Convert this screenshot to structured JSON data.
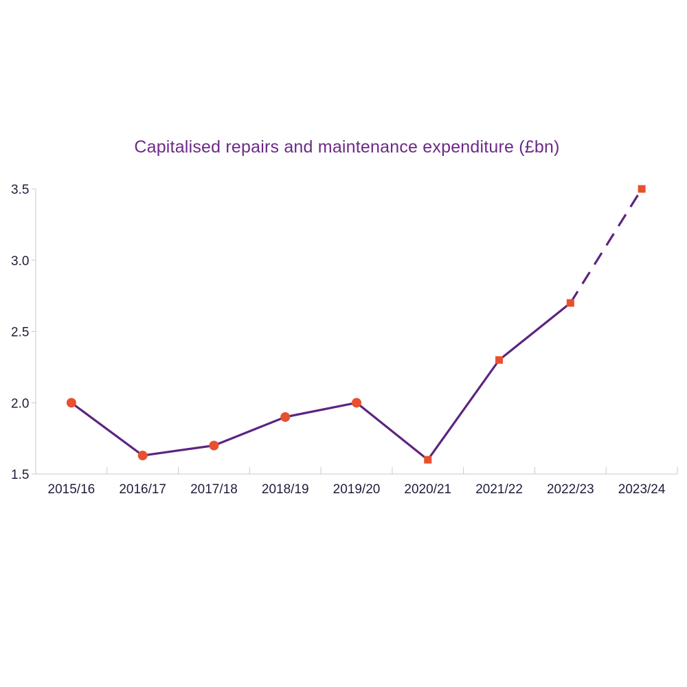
{
  "chart_data": {
    "type": "line",
    "title": "Capitalised repairs and maintenance expenditure (£bn)",
    "xlabel": "",
    "ylabel": "",
    "categories": [
      "2015/16",
      "2016/17",
      "2017/18",
      "2018/19",
      "2019/20",
      "2020/21",
      "2021/22",
      "2022/23",
      "2023/24"
    ],
    "values": [
      2.0,
      1.63,
      1.7,
      1.9,
      2.0,
      1.6,
      2.3,
      2.7,
      3.5
    ],
    "marker_shapes": [
      "circle",
      "circle",
      "circle",
      "circle",
      "circle",
      "square",
      "square",
      "square",
      "square"
    ],
    "line_styles": [
      "solid",
      "solid",
      "solid",
      "solid",
      "solid",
      "solid",
      "solid",
      "dashed"
    ],
    "ylim": [
      1.5,
      3.5
    ],
    "yticks": [
      "1.5",
      "2.0",
      "2.5",
      "3.0",
      "3.5"
    ],
    "grid": false,
    "legend": "none"
  },
  "colors": {
    "title": "#6b2a86",
    "line": "#5c2380",
    "marker": "#e8502e",
    "tick_label": "#1d1d3a",
    "axis": "#c8c8c8"
  }
}
